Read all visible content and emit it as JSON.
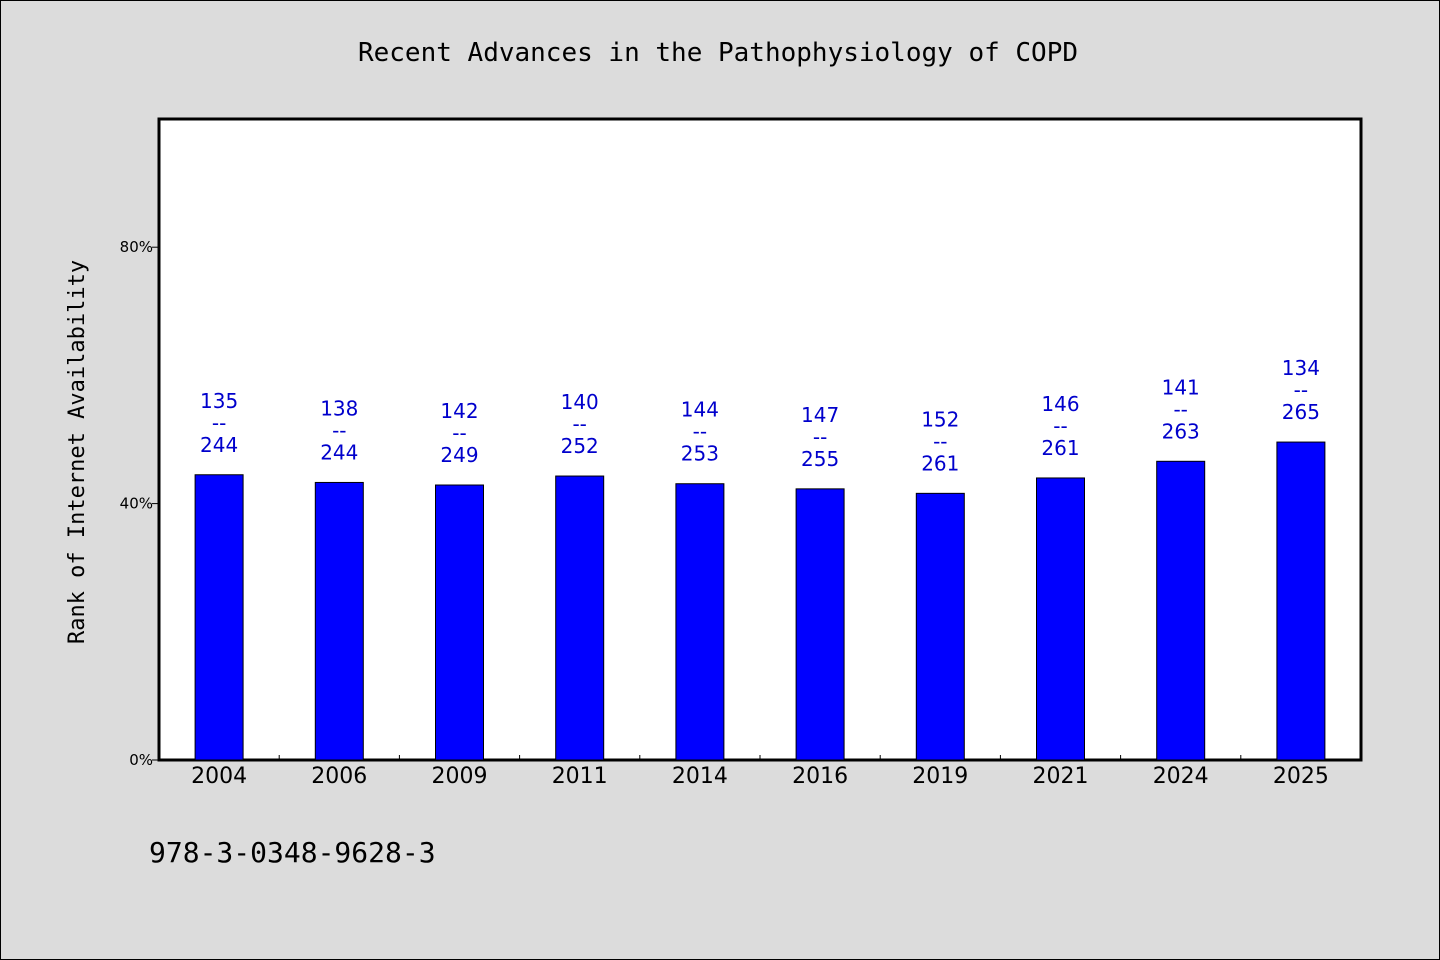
{
  "chart_data": {
    "type": "bar",
    "title": "Recent Advances in the Pathophysiology of COPD",
    "ylabel": "Rank of Internet Availability",
    "xlabel": "",
    "categories": [
      "2004",
      "2006",
      "2009",
      "2011",
      "2014",
      "2016",
      "2019",
      "2021",
      "2024",
      "2025"
    ],
    "values": [
      44.5,
      43.3,
      42.9,
      44.3,
      43.1,
      42.3,
      41.6,
      44.0,
      46.6,
      49.6
    ],
    "data_labels": [
      [
        "135",
        "--",
        "244"
      ],
      [
        "138",
        "--",
        "244"
      ],
      [
        "142",
        "--",
        "249"
      ],
      [
        "140",
        "--",
        "252"
      ],
      [
        "144",
        "--",
        "253"
      ],
      [
        "147",
        "--",
        "255"
      ],
      [
        "152",
        "--",
        "261"
      ],
      [
        "146",
        "--",
        "261"
      ],
      [
        "141",
        "--",
        "263"
      ],
      [
        "134",
        "--",
        "265"
      ]
    ],
    "ylim": [
      0,
      100
    ],
    "yticks": [
      0,
      40,
      80
    ],
    "ytick_labels": [
      "0%",
      "40%",
      "80%"
    ],
    "grid": false,
    "bar_color": "#0000ff",
    "label_color": "#0000cc",
    "background": "#dcdcdc",
    "plot_background": "#ffffff"
  },
  "footer": {
    "isbn": "978-3-0348-9628-3"
  }
}
